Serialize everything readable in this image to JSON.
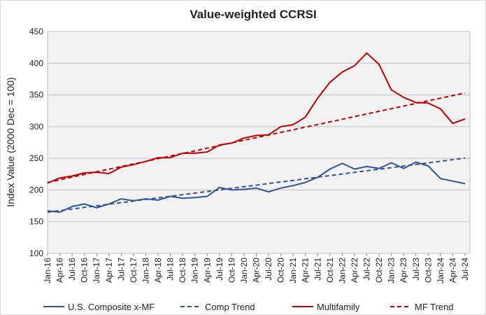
{
  "chart_data": {
    "type": "line",
    "title": "Value-weighted  CCRSI",
    "y_label": "Index  Value (2000 Dec = 100)",
    "categories": [
      "Jan-16",
      "Apr-16",
      "Jul-16",
      "Oct-16",
      "Jan-17",
      "Apr-17",
      "Jul-17",
      "Oct-17",
      "Jan-18",
      "Apr-18",
      "Jul-18",
      "Oct-18",
      "Jan-19",
      "Apr-19",
      "Jul-19",
      "Oct-19",
      "Jan-20",
      "Apr-20",
      "Jul-20",
      "Oct-20",
      "Jan-21",
      "Apr-21",
      "Jul-21",
      "Oct-21",
      "Jan-22",
      "Apr-22",
      "Jul-22",
      "Oct-22",
      "Jan-23",
      "Apr-23",
      "Jul-23",
      "Oct-23",
      "Jan-24",
      "Apr-24",
      "Jul-24"
    ],
    "ylim": [
      100,
      450
    ],
    "yticks": [
      100,
      150,
      200,
      250,
      300,
      350,
      400,
      450
    ],
    "grid": true,
    "series": [
      {
        "name": "U.S. Composite x-MF",
        "color": "#2f5597",
        "dash": false,
        "values": [
          167,
          165,
          174,
          178,
          172,
          178,
          186,
          183,
          186,
          184,
          190,
          187,
          188,
          190,
          204,
          200,
          201,
          203,
          197,
          203,
          207,
          212,
          220,
          233,
          242,
          233,
          237,
          234,
          243,
          234,
          244,
          238,
          218,
          214,
          210
        ]
      },
      {
        "name": "Comp Trend",
        "color": "#2f5597",
        "dash": true,
        "values": [
          165,
          167.5,
          170,
          172.5,
          175,
          177.6,
          180.1,
          182.6,
          185.1,
          187.6,
          190.1,
          192.6,
          195.1,
          197.6,
          200.1,
          202.7,
          205.2,
          207.7,
          210.2,
          212.7,
          215.2,
          217.7,
          220.2,
          222.7,
          225.2,
          227.8,
          230.3,
          232.8,
          235.3,
          237.8,
          240.3,
          242.8,
          245.3,
          247.8,
          250.3
        ]
      },
      {
        "name": "Multifamily",
        "color": "#c00000",
        "dash": false,
        "values": [
          211,
          219,
          222,
          227,
          228,
          226,
          236,
          240,
          245,
          251,
          251,
          258,
          258,
          260,
          271,
          274,
          282,
          286,
          287,
          300,
          303,
          315,
          345,
          370,
          386,
          396,
          416,
          398,
          358,
          346,
          338,
          337,
          328,
          305,
          312
        ]
      },
      {
        "name": "MF Trend",
        "color": "#c00000",
        "dash": true,
        "values": [
          212,
          216.2,
          220.3,
          224.5,
          228.6,
          232.8,
          236.9,
          241.1,
          245.2,
          249.4,
          253.5,
          257.7,
          261.8,
          266,
          270.1,
          274.3,
          278.4,
          282.6,
          286.7,
          290.9,
          295,
          299.2,
          303.3,
          307.5,
          311.6,
          315.8,
          319.9,
          324.1,
          328.2,
          332.4,
          336.5,
          340.7,
          344.8,
          349,
          353.1
        ]
      }
    ]
  }
}
